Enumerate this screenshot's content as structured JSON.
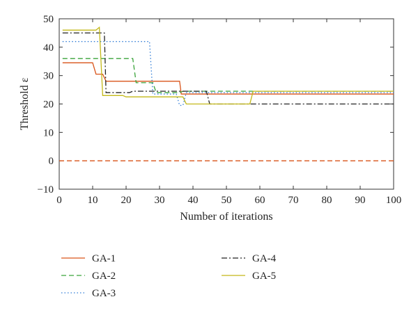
{
  "chart_data": {
    "type": "line",
    "title": "",
    "xlabel": "Number of iterations",
    "ylabel": "Threshold ε",
    "xlim": [
      0,
      100
    ],
    "ylim": [
      -10,
      50
    ],
    "xticks": [
      0,
      10,
      20,
      30,
      40,
      50,
      60,
      70,
      80,
      90,
      100
    ],
    "yticks": [
      -10,
      0,
      10,
      20,
      30,
      40,
      50
    ],
    "grid": false,
    "legend_position": "bottom",
    "series": [
      {
        "name": "GA-1",
        "color": "#d95319",
        "dash": "solid",
        "x": [
          1,
          10,
          11,
          13,
          14,
          36,
          36.5,
          100
        ],
        "y": [
          34.5,
          34.5,
          30.5,
          30.5,
          28,
          28,
          23.5,
          23.5
        ]
      },
      {
        "name": "GA-2",
        "color": "#3aa33a",
        "dash": "dashed",
        "x": [
          1,
          12,
          13,
          22,
          23,
          28,
          29,
          36,
          37,
          100
        ],
        "y": [
          36,
          36,
          36,
          36,
          27.5,
          27.5,
          24,
          24,
          24.5,
          24.5
        ]
      },
      {
        "name": "GA-3",
        "color": "#2e7bd6",
        "dash": "dotted",
        "x": [
          1,
          27,
          28,
          35,
          36,
          37,
          38,
          100
        ],
        "y": [
          42,
          42,
          23.5,
          23.5,
          19.5,
          19.5,
          24,
          24
        ]
      },
      {
        "name": "GA-4",
        "color": "#222222",
        "dash": "dashdot",
        "x": [
          1,
          12.5,
          13.5,
          14,
          21,
          22,
          44,
          45,
          57,
          58,
          100
        ],
        "y": [
          45,
          45,
          45,
          24,
          24,
          24.5,
          24.5,
          20,
          20,
          20,
          20
        ]
      },
      {
        "name": "GA-5",
        "color": "#c3b817",
        "dash": "solid",
        "x": [
          1,
          11,
          12,
          13,
          19,
          20,
          37,
          38,
          57,
          58,
          100
        ],
        "y": [
          46,
          46,
          47,
          23,
          23,
          22.5,
          22.5,
          20,
          20,
          24.5,
          24.5
        ]
      },
      {
        "name": "",
        "color": "#d95319",
        "dash": "dashed",
        "legend": false,
        "x": [
          0,
          100
        ],
        "y": [
          0,
          0
        ]
      }
    ]
  }
}
